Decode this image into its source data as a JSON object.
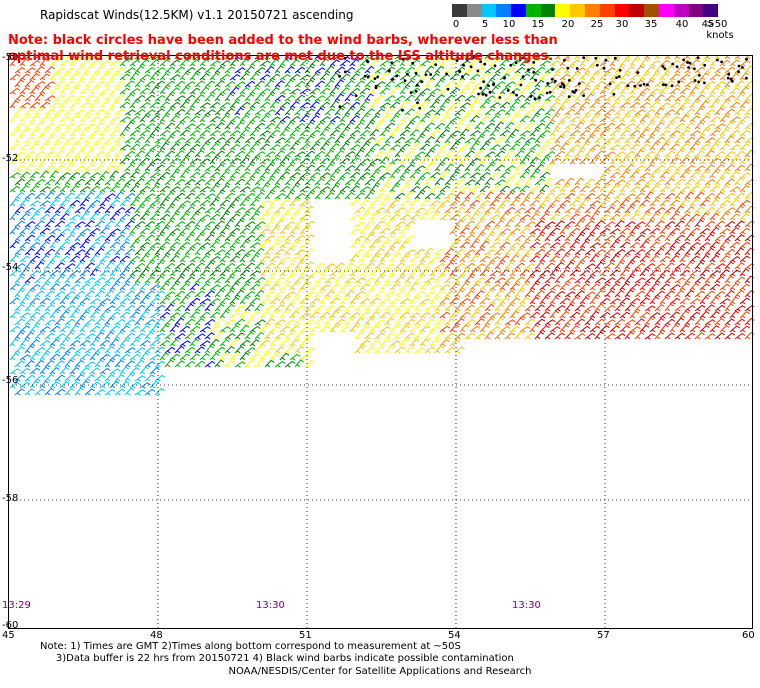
{
  "title": "Rapidscat Winds(12.5KM) v1.1 20150721 ascending",
  "note_line1": "Note: black circles have been added to the wind barbs, wherever less than",
  "note_line2": "optimal wind retrieval conditions are met due to the ISS altitude changes.",
  "legend": {
    "labels": [
      "0",
      "5",
      "10",
      "15",
      "20",
      "25",
      "30",
      "35",
      "40",
      "45",
      ">50 knots"
    ],
    "colors": [
      "#3a3a3a",
      "#8a8a8a",
      "#00c8ff",
      "#0080ff",
      "#0000ff",
      "#00b400",
      "#008000",
      "#ffff00",
      "#ffc800",
      "#ff8000",
      "#ff4000",
      "#ff0000",
      "#c00000",
      "#a05000",
      "#ff00ff",
      "#c000c0",
      "#800080",
      "#400080"
    ]
  },
  "axes": {
    "lat_labels": [
      "-50",
      "-52",
      "-54",
      "-56",
      "-58",
      "-60"
    ],
    "lon_labels": [
      "45",
      "48",
      "51",
      "54",
      "57",
      "60"
    ]
  },
  "time_labels": [
    "13:29",
    "13:30",
    "13:30"
  ],
  "footnote_line1": "Note: 1) Times are GMT 2)Times along bottom correspond to measurement at ~50S",
  "footnote_line2": "3)Data buffer is 22 hrs from 20150721 4) Black wind barbs indicate possible contamination",
  "credit": "NOAA/NESDIS/Center for Satellite Applications and Research",
  "map_data": {
    "lon_range": [
      45,
      60
    ],
    "lat_range": [
      -60,
      -50
    ],
    "grid": "dotted every 3 deg lon, 2 deg lat"
  }
}
